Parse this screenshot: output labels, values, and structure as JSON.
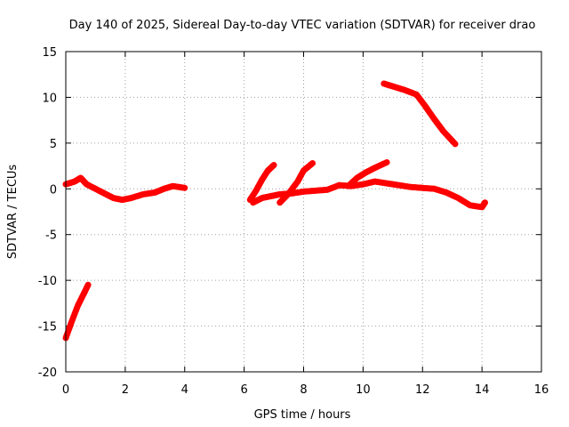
{
  "chart_data": {
    "type": "scatter",
    "title": "Day 140 of 2025, Sidereal Day-to-day VTEC variation (SDTVAR) for receiver drao",
    "xlabel": "GPS time / hours",
    "ylabel": "SDTVAR / TECUs",
    "xlim": [
      0,
      16
    ],
    "ylim": [
      -20,
      15
    ],
    "x_ticks": [
      0,
      2,
      4,
      6,
      8,
      10,
      12,
      14,
      16
    ],
    "y_ticks": [
      -20,
      -15,
      -10,
      -5,
      0,
      5,
      10,
      15
    ],
    "x_tick_labels": [
      "0",
      "2",
      "4",
      "6",
      "8",
      "10",
      "12",
      "14",
      "16"
    ],
    "y_tick_labels": [
      "-20",
      "-15",
      "-10",
      "-5",
      "0",
      "5",
      "10",
      "15"
    ],
    "grid": true,
    "legend": "none",
    "marker_color": "#ff0000",
    "series": [
      {
        "name": "arc-1",
        "x": [
          0.0,
          0.3,
          0.5,
          0.7,
          1.0,
          1.3,
          1.6,
          1.9,
          2.2,
          2.6,
          3.0,
          3.3,
          3.6,
          4.0
        ],
        "y": [
          0.5,
          0.8,
          1.2,
          0.5,
          0.0,
          -0.5,
          -1.0,
          -1.2,
          -1.0,
          -0.6,
          -0.4,
          0.0,
          0.3,
          0.1
        ]
      },
      {
        "name": "arc-2",
        "x": [
          0.0,
          0.2,
          0.4,
          0.6,
          0.75
        ],
        "y": [
          -16.3,
          -14.5,
          -12.8,
          -11.5,
          -10.5
        ]
      },
      {
        "name": "arc-3",
        "x": [
          6.3,
          6.6,
          6.9,
          7.2,
          7.6,
          8.0,
          8.4,
          8.8,
          9.2,
          9.6,
          10.0,
          10.4,
          10.8,
          11.2,
          11.6,
          12.0,
          12.4,
          12.8,
          13.2,
          13.6,
          14.0,
          14.1
        ],
        "y": [
          -1.5,
          -1.0,
          -0.8,
          -0.6,
          -0.5,
          -0.3,
          -0.2,
          -0.1,
          0.4,
          0.3,
          0.5,
          0.8,
          0.6,
          0.4,
          0.2,
          0.1,
          0.0,
          -0.4,
          -1.0,
          -1.8,
          -2.0,
          -1.5
        ]
      },
      {
        "name": "arc-4",
        "x": [
          6.2,
          6.4,
          6.6,
          6.8,
          7.0
        ],
        "y": [
          -1.2,
          -0.2,
          1.0,
          2.0,
          2.6
        ]
      },
      {
        "name": "arc-5",
        "x": [
          7.2,
          7.5,
          7.8,
          8.0,
          8.3
        ],
        "y": [
          -1.5,
          -0.5,
          0.8,
          2.0,
          2.8
        ]
      },
      {
        "name": "arc-6",
        "x": [
          9.5,
          9.8,
          10.1,
          10.4,
          10.8
        ],
        "y": [
          0.3,
          1.2,
          1.8,
          2.3,
          2.9
        ]
      },
      {
        "name": "arc-7",
        "x": [
          10.7,
          11.0,
          11.4,
          11.8,
          12.1,
          12.4,
          12.7,
          13.1
        ],
        "y": [
          11.5,
          11.2,
          10.8,
          10.3,
          9.0,
          7.6,
          6.3,
          4.9
        ]
      }
    ]
  }
}
